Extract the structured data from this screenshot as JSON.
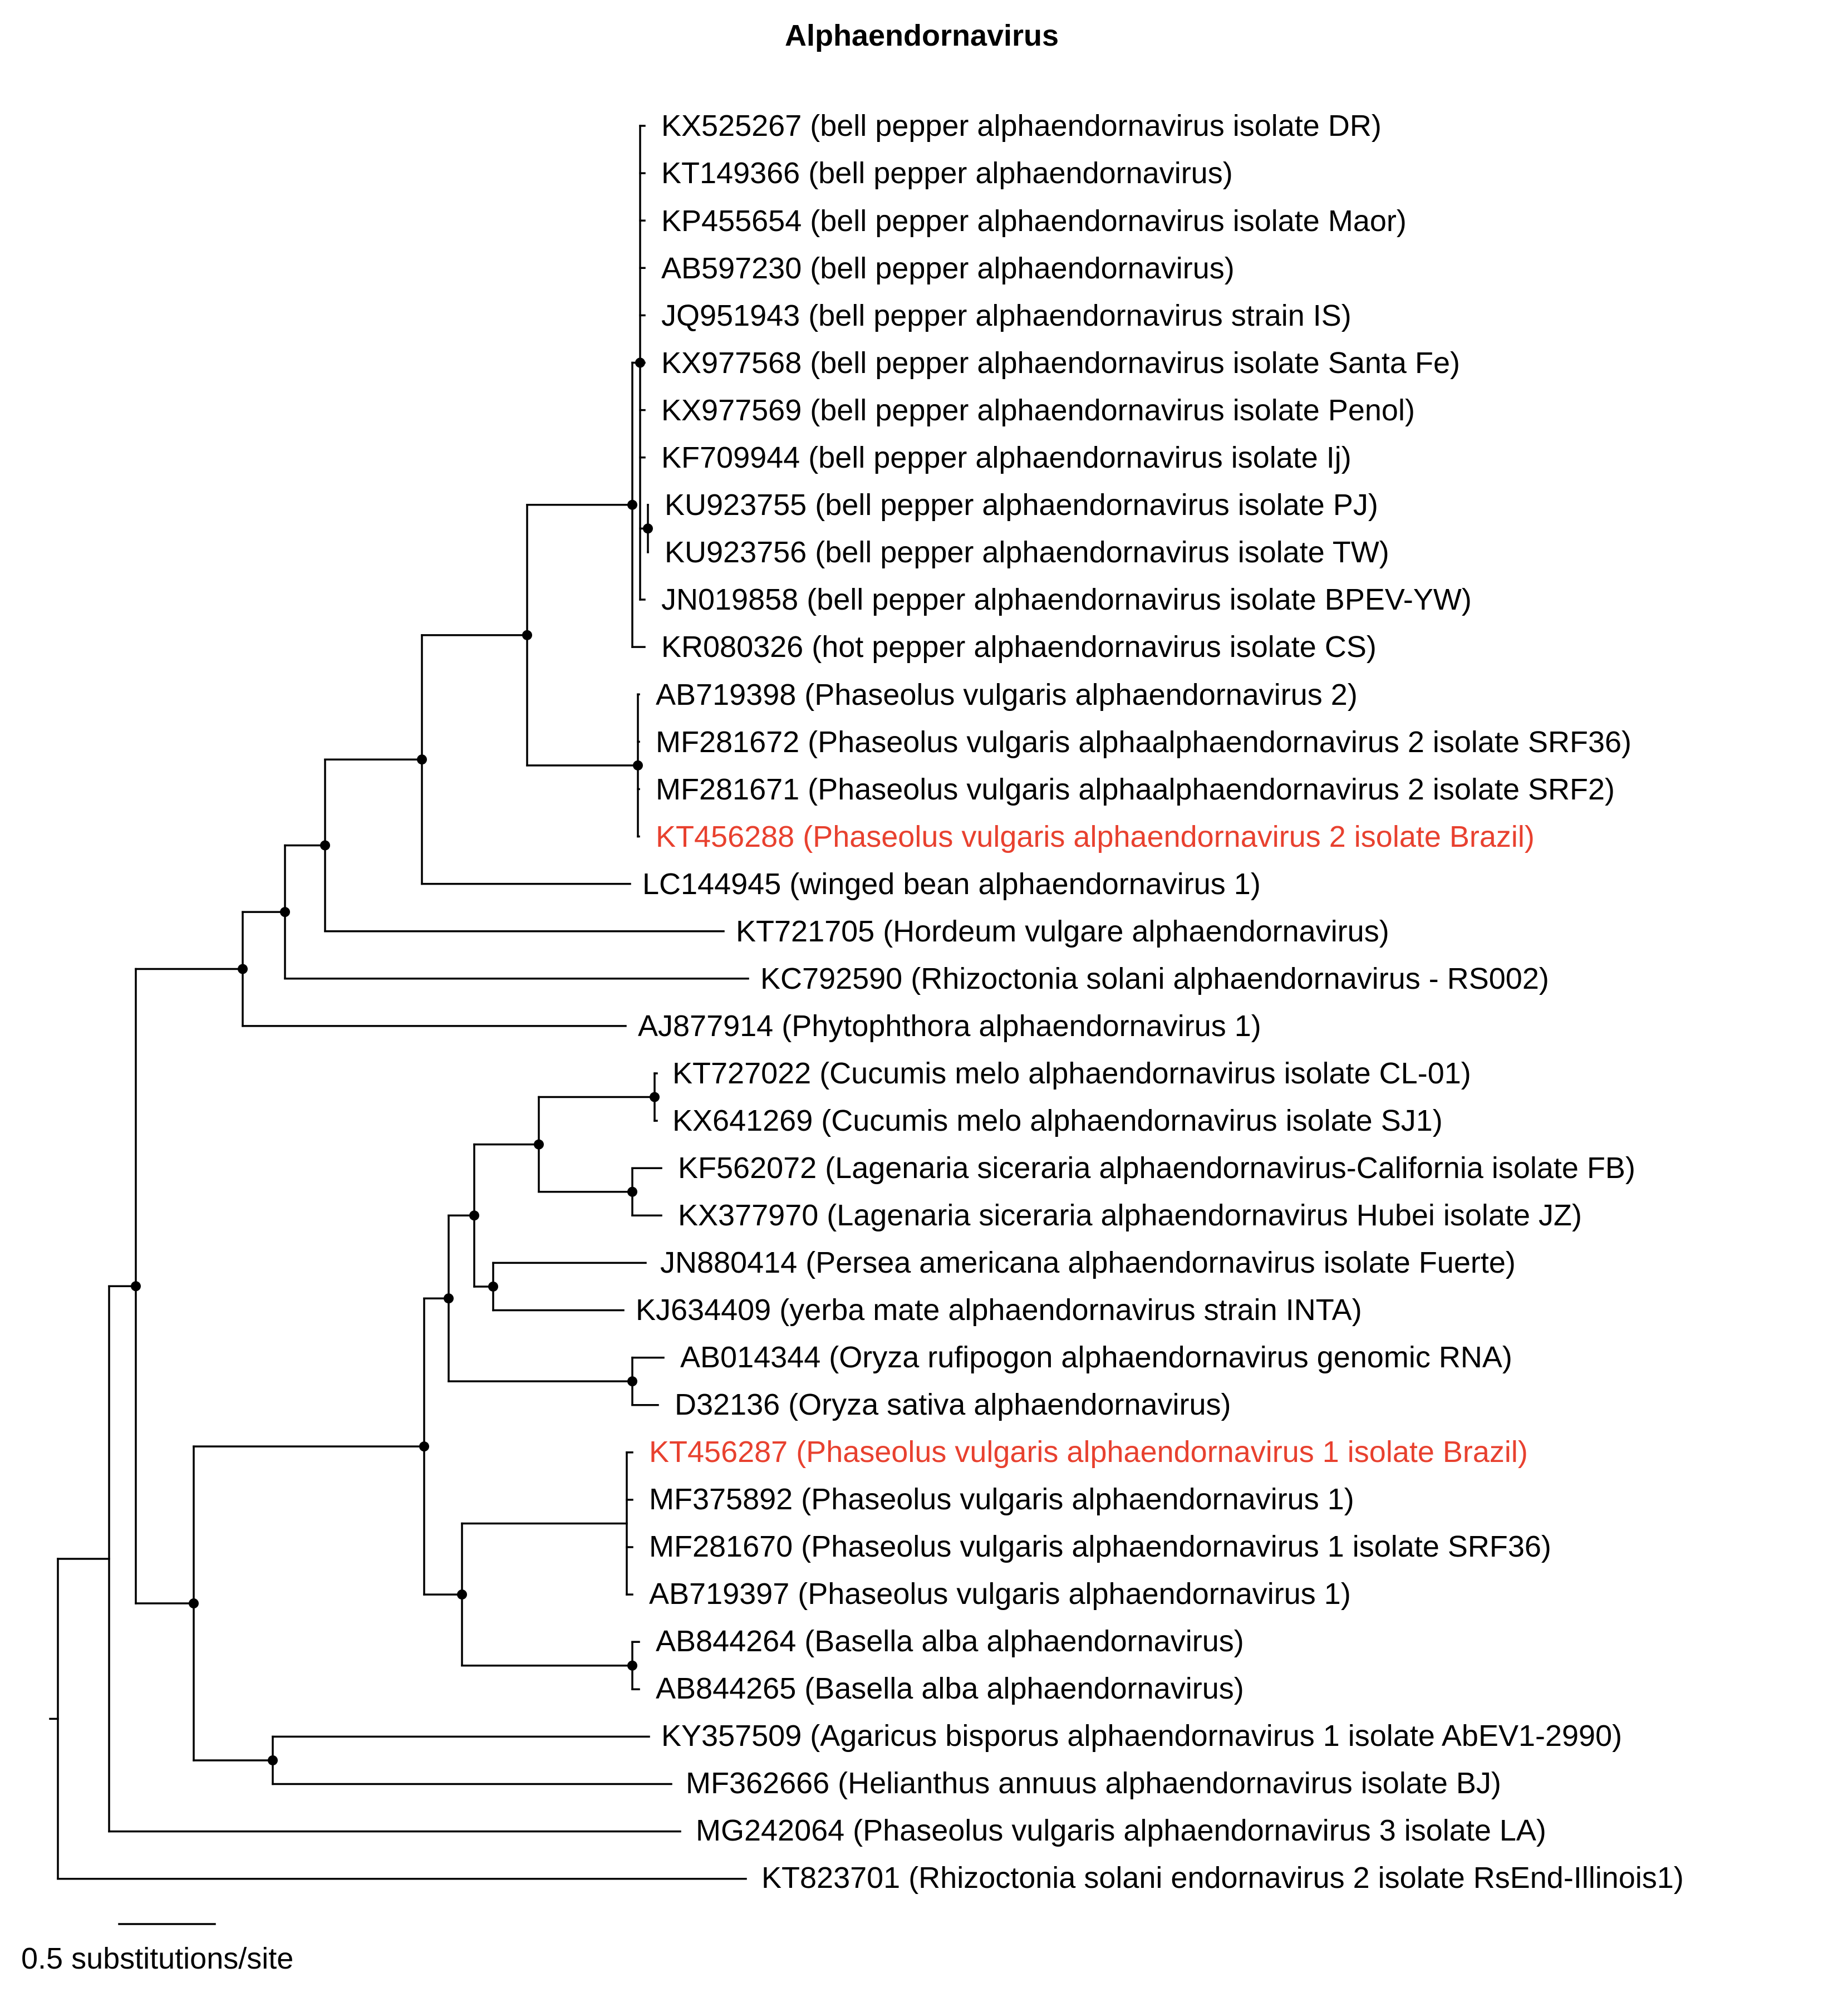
{
  "title": "Alphaendornavirus",
  "highlight_color": "#e8412f",
  "scale_bar": {
    "label": "0.5 substitutions/site",
    "value": 0.5
  },
  "leaves": [
    {
      "id": "L01",
      "label": "KX525267 (bell pepper alphaendornavirus isolate DR)",
      "highlight": false
    },
    {
      "id": "L02",
      "label": "KT149366 (bell pepper alphaendornavirus)",
      "highlight": false
    },
    {
      "id": "L03",
      "label": "KP455654 (bell pepper alphaendornavirus isolate Maor)",
      "highlight": false
    },
    {
      "id": "L04",
      "label": "AB597230 (bell pepper alphaendornavirus)",
      "highlight": false
    },
    {
      "id": "L05",
      "label": "JQ951943 (bell pepper alphaendornavirus  strain IS)",
      "highlight": false
    },
    {
      "id": "L06",
      "label": "KX977568 (bell pepper alphaendornavirus isolate Santa Fe)",
      "highlight": false
    },
    {
      "id": "L07",
      "label": "KX977569 (bell pepper alphaendornavirus isolate Penol)",
      "highlight": false
    },
    {
      "id": "L08",
      "label": "KF709944 (bell pepper alphaendornavirus isolate Ij)",
      "highlight": false
    },
    {
      "id": "L09",
      "label": "KU923755 (bell pepper alphaendornavirus isolate PJ)",
      "highlight": false
    },
    {
      "id": "L10",
      "label": "KU923756 (bell pepper alphaendornavirus isolate TW)",
      "highlight": false
    },
    {
      "id": "L11",
      "label": "JN019858 (bell pepper alphaendornavirus isolate BPEV-YW)",
      "highlight": false
    },
    {
      "id": "L12",
      "label": "KR080326 (hot pepper alphaendornavirus isolate CS)",
      "highlight": false
    },
    {
      "id": "L13",
      "label": "AB719398 (Phaseolus vulgaris alphaendornavirus 2)",
      "highlight": false
    },
    {
      "id": "L14",
      "label": "MF281672 (Phaseolus vulgaris alphaalphaendornavirus 2 isolate SRF36)",
      "highlight": false
    },
    {
      "id": "L15",
      "label": "MF281671 (Phaseolus vulgaris alphaalphaendornavirus 2 isolate SRF2)",
      "highlight": false
    },
    {
      "id": "L16",
      "label": "KT456288 (Phaseolus vulgaris alphaendornavirus 2 isolate Brazil)",
      "highlight": true
    },
    {
      "id": "L17",
      "label": "LC144945 (winged bean alphaendornavirus 1)",
      "highlight": false
    },
    {
      "id": "L18",
      "label": "KT721705 (Hordeum vulgare alphaendornavirus)",
      "highlight": false
    },
    {
      "id": "L19",
      "label": "KC792590 (Rhizoctonia solani alphaendornavirus - RS002)",
      "highlight": false
    },
    {
      "id": "L20",
      "label": "AJ877914 (Phytophthora alphaendornavirus 1)",
      "highlight": false
    },
    {
      "id": "L21",
      "label": "KT727022 (Cucumis melo alphaendornavirus isolate CL-01)",
      "highlight": false
    },
    {
      "id": "L22",
      "label": "KX641269 (Cucumis melo alphaendornavirus isolate SJ1)",
      "highlight": false
    },
    {
      "id": "L23",
      "label": "KF562072 (Lagenaria siceraria alphaendornavirus-California isolate FB)",
      "highlight": false
    },
    {
      "id": "L24",
      "label": "KX377970 (Lagenaria siceraria alphaendornavirus Hubei isolate JZ)",
      "highlight": false
    },
    {
      "id": "L25",
      "label": "JN880414 (Persea americana alphaendornavirus isolate Fuerte)",
      "highlight": false
    },
    {
      "id": "L26",
      "label": "KJ634409 (yerba mate alphaendornavirus strain INTA)",
      "highlight": false
    },
    {
      "id": "L27",
      "label": "AB014344 (Oryza rufipogon alphaendornavirus genomic RNA)",
      "highlight": false
    },
    {
      "id": "L28",
      "label": "D32136 (Oryza sativa alphaendornavirus)",
      "highlight": false
    },
    {
      "id": "L29",
      "label": "KT456287 (Phaseolus vulgaris alphaendornavirus 1 isolate Brazil)",
      "highlight": true
    },
    {
      "id": "L30",
      "label": "MF375892 (Phaseolus vulgaris alphaendornavirus 1)",
      "highlight": false
    },
    {
      "id": "L31",
      "label": "MF281670 (Phaseolus vulgaris alphaendornavirus 1 isolate SRF36)",
      "highlight": false
    },
    {
      "id": "L32",
      "label": "AB719397 (Phaseolus vulgaris alphaendornavirus 1)",
      "highlight": false
    },
    {
      "id": "L33",
      "label": "AB844264 (Basella alba alphaendornavirus)",
      "highlight": false
    },
    {
      "id": "L34",
      "label": "AB844265 (Basella alba alphaendornavirus)",
      "highlight": false
    },
    {
      "id": "L35",
      "label": "KY357509 (Agaricus bisporus alphaendornavirus 1 isolate AbEV1-2990)",
      "highlight": false
    },
    {
      "id": "L36",
      "label": "MF362666 (Helianthus annuus alphaendornavirus isolate BJ)",
      "highlight": false
    },
    {
      "id": "L37",
      "label": "MG242064 (Phaseolus vulgaris alphaendornavirus 3 isolate LA)",
      "highlight": false
    },
    {
      "id": "L38",
      "label": "KT823701 (Rhizoctonia solani endornavirus 2 isolate RsEnd-Illinois1)",
      "highlight": false
    }
  ]
}
